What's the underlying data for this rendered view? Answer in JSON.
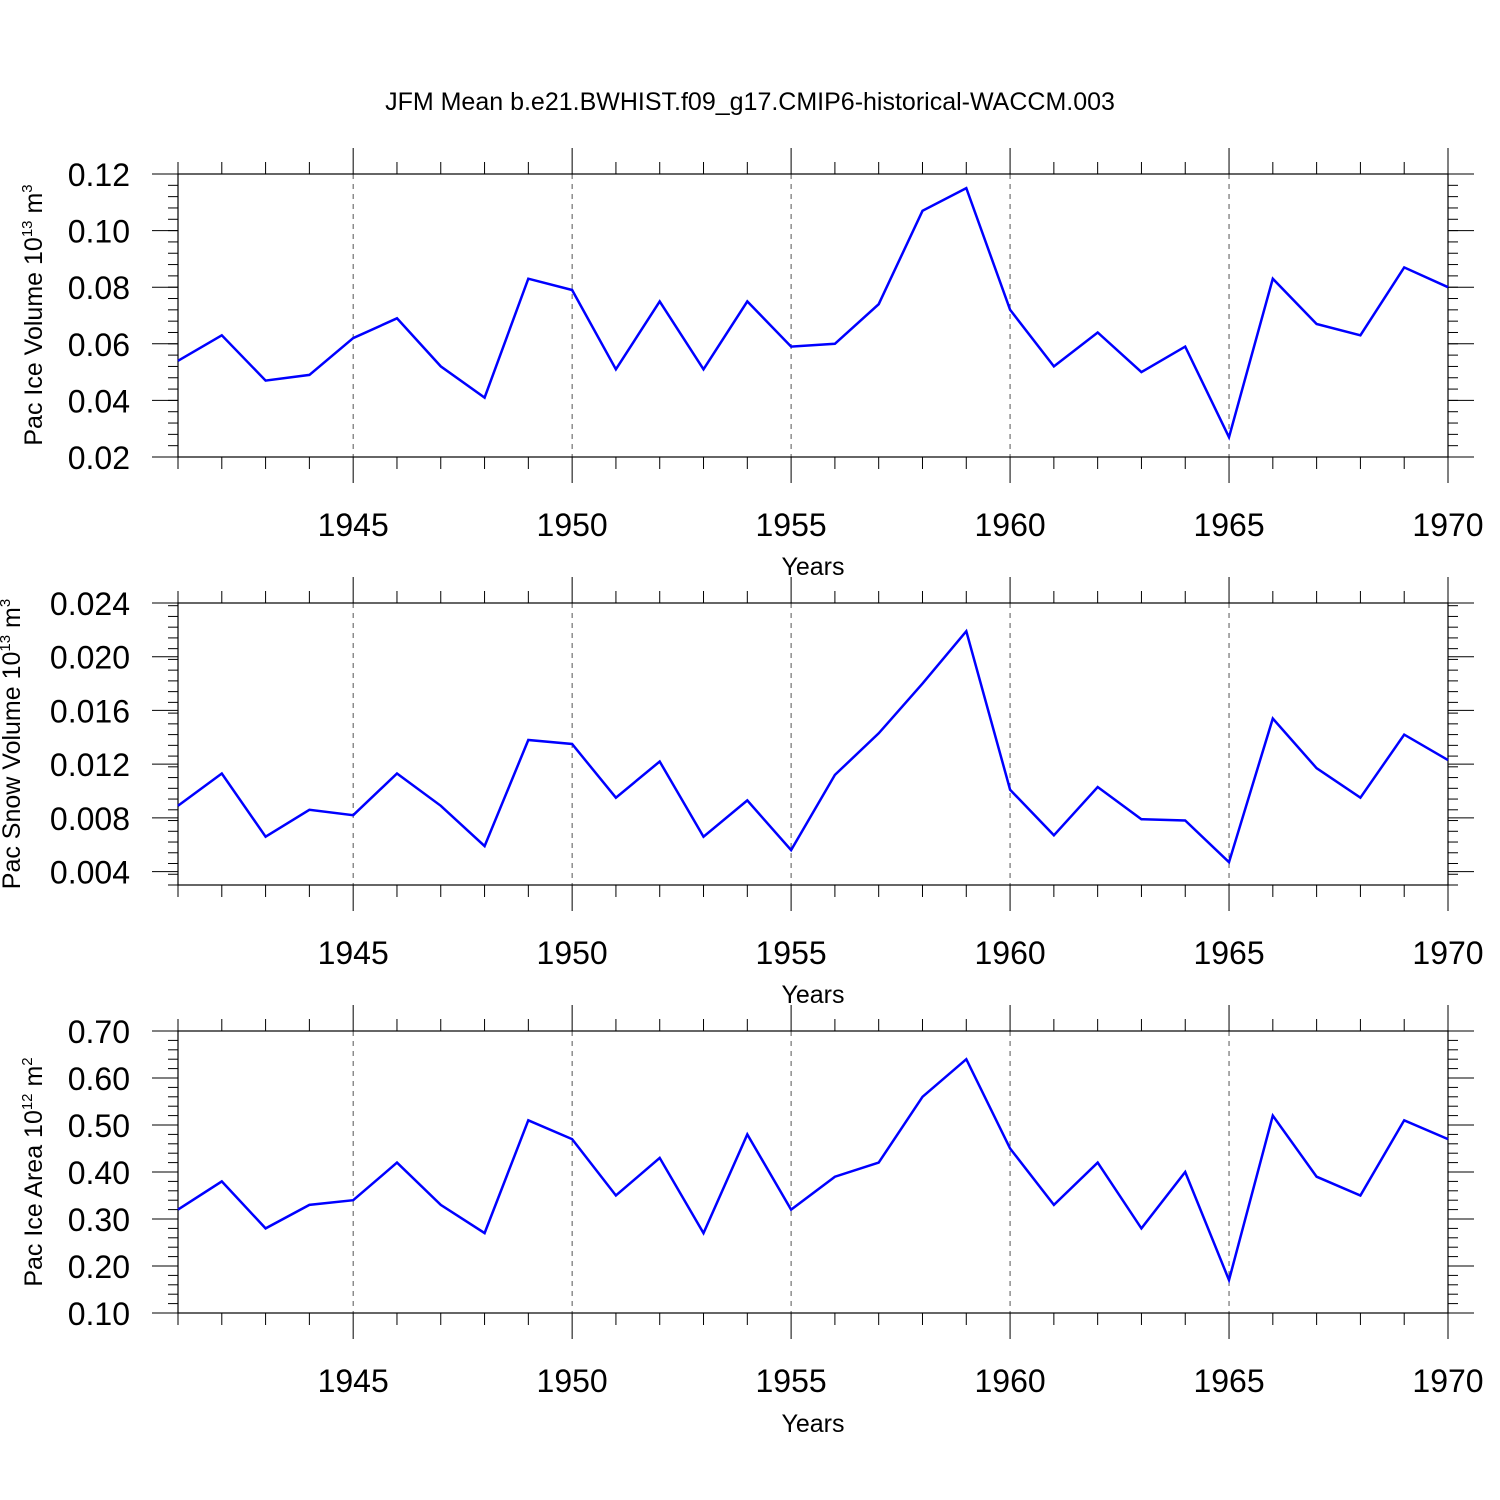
{
  "title": "JFM Mean b.e21.BWHIST.f09_g17.CMIP6-historical-WACCM.003",
  "line_color": "#0000ff",
  "chart_data": [
    {
      "type": "line",
      "ylabel": {
        "prefix": "Pac Ice Volume 10",
        "exp": "13",
        "unit": " m",
        "unit_exp": "3"
      },
      "xlabel": "Years",
      "xlim": [
        1941,
        1970
      ],
      "ylim": [
        0.02,
        0.12
      ],
      "xticks": [
        "1945",
        "1950",
        "1955",
        "1960",
        "1965",
        "1970"
      ],
      "yticks": [
        "0.02",
        "0.04",
        "0.06",
        "0.08",
        "0.10",
        "0.12"
      ],
      "x": [
        1941,
        1942,
        1943,
        1944,
        1945,
        1946,
        1947,
        1948,
        1949,
        1950,
        1951,
        1952,
        1953,
        1954,
        1955,
        1956,
        1957,
        1958,
        1959,
        1960,
        1961,
        1962,
        1963,
        1964,
        1965,
        1966,
        1967,
        1968,
        1969,
        1970
      ],
      "values": [
        0.054,
        0.063,
        0.047,
        0.049,
        0.062,
        0.069,
        0.052,
        0.041,
        0.083,
        0.079,
        0.051,
        0.075,
        0.051,
        0.075,
        0.059,
        0.06,
        0.074,
        0.107,
        0.115,
        0.072,
        0.052,
        0.064,
        0.05,
        0.059,
        0.027,
        0.083,
        0.067,
        0.063,
        0.087,
        0.08
      ]
    },
    {
      "type": "line",
      "ylabel": {
        "prefix": "Pac Snow Volume 10",
        "exp": "13",
        "unit": " m",
        "unit_exp": "3"
      },
      "xlabel": "Years",
      "xlim": [
        1941,
        1970
      ],
      "ylim": [
        0.003,
        0.024
      ],
      "xticks": [
        "1945",
        "1950",
        "1955",
        "1960",
        "1965",
        "1970"
      ],
      "yticks": [
        "0.004",
        "0.008",
        "0.012",
        "0.016",
        "0.020",
        "0.024"
      ],
      "x": [
        1941,
        1942,
        1943,
        1944,
        1945,
        1946,
        1947,
        1948,
        1949,
        1950,
        1951,
        1952,
        1953,
        1954,
        1955,
        1956,
        1957,
        1958,
        1959,
        1960,
        1961,
        1962,
        1963,
        1964,
        1965,
        1966,
        1967,
        1968,
        1969,
        1970
      ],
      "values": [
        0.0089,
        0.0113,
        0.0066,
        0.0086,
        0.0082,
        0.0113,
        0.0089,
        0.0059,
        0.0138,
        0.0135,
        0.0095,
        0.0122,
        0.0066,
        0.0093,
        0.0056,
        0.0112,
        0.0143,
        0.018,
        0.0219,
        0.0101,
        0.0067,
        0.0103,
        0.0079,
        0.0078,
        0.0047,
        0.0154,
        0.0117,
        0.0095,
        0.0142,
        0.0123
      ]
    },
    {
      "type": "line",
      "ylabel": {
        "prefix": "Pac Ice Area 10",
        "exp": "12",
        "unit": " m",
        "unit_exp": "2"
      },
      "xlabel": "Years",
      "xlim": [
        1941,
        1970
      ],
      "ylim": [
        0.1,
        0.7
      ],
      "xticks": [
        "1945",
        "1950",
        "1955",
        "1960",
        "1965",
        "1970"
      ],
      "yticks": [
        "0.10",
        "0.20",
        "0.30",
        "0.40",
        "0.50",
        "0.60",
        "0.70"
      ],
      "x": [
        1941,
        1942,
        1943,
        1944,
        1945,
        1946,
        1947,
        1948,
        1949,
        1950,
        1951,
        1952,
        1953,
        1954,
        1955,
        1956,
        1957,
        1958,
        1959,
        1960,
        1961,
        1962,
        1963,
        1964,
        1965,
        1966,
        1967,
        1968,
        1969,
        1970
      ],
      "values": [
        0.32,
        0.38,
        0.28,
        0.33,
        0.34,
        0.42,
        0.33,
        0.27,
        0.51,
        0.47,
        0.35,
        0.43,
        0.27,
        0.48,
        0.32,
        0.39,
        0.42,
        0.56,
        0.64,
        0.45,
        0.33,
        0.42,
        0.28,
        0.4,
        0.17,
        0.52,
        0.39,
        0.35,
        0.51,
        0.47
      ]
    }
  ]
}
